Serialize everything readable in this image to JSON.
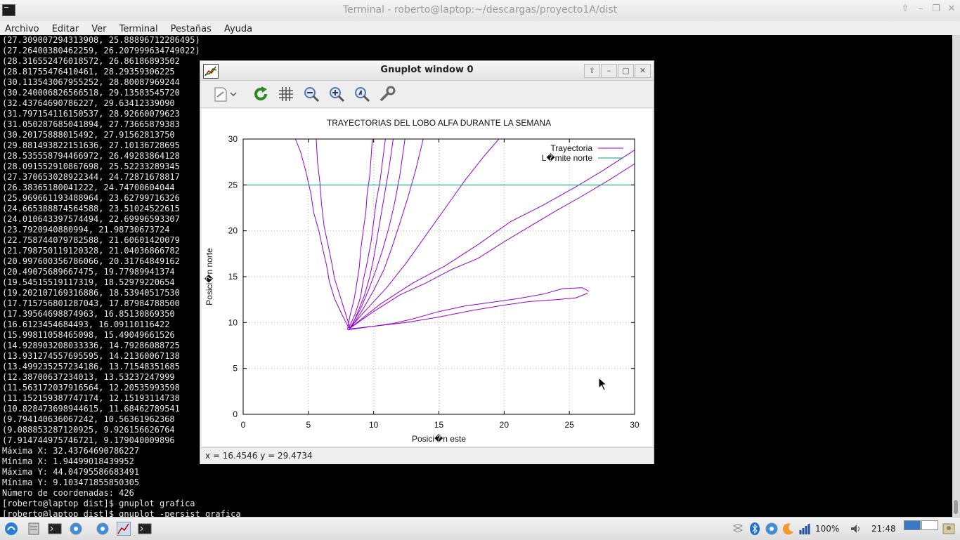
{
  "terminal": {
    "title": "Terminal - roberto@laptop:~/descargas/proyecto1A/dist",
    "menu": [
      "Archivo",
      "Editar",
      "Ver",
      "Terminal",
      "Pestañas",
      "Ayuda"
    ],
    "lines": [
      "(27.309007294313908, 25.88896712286495)",
      "(27.26400380462259, 26.207999634749022)",
      "(28.316552476018572, 26.86186893502",
      "(28.81755476410461, 28.29359306225",
      "(30.113543067955252, 28.80087969244",
      "(30.240006826566518, 29.13583545720",
      "(32.43764690786227, 29.63412339090",
      "(31.797154116150537, 28.92660079623",
      "(31.050287685041894, 27.73665879383",
      "(30.20175888015492, 27.91562813750",
      "(29.881493822151636, 27.10136728695",
      "(28.535558794466972, 26.49283864128",
      "(28.091552910867698, 25.52233289345",
      "(27.370653028922344, 24.72871678817",
      "(26.38365180041222, 24.74700604044",
      "(25.969661193488964, 23.62799716326",
      "(24.665388874564588, 23.51024522615",
      "(24.010643397574494, 22.69996593307",
      "(23.7920940880994, 21.98730673724",
      "(22.758744079782588, 21.60601420079",
      "(21.798750119120328, 21.04036866782",
      "(20.997600356786066, 20.31764849162",
      "(20.49075689667475, 19.77989941374",
      "(19.54515519117319, 18.52979220654",
      "(19.202107169316886, 18.53940517530",
      "(17.715756801287043, 17.87984788500",
      "(17.39564698874963, 16.85130869350",
      "(16.6123454684493, 16.09110116422",
      "(15.99811058465098, 15.49049661526",
      "(14.928903208033336, 14.79286088725",
      "(13.931274557695595, 14.21360067138",
      "(13.499235257234186, 13.71548351685",
      "(12.38700637234013, 13.53237247999",
      "(11.563172037916564, 12.20535993598",
      "(11.152159387747174, 12.15193114738",
      "(10.828473698944615, 11.68462789541",
      "(9.794140636067242, 10.56361962368",
      "(9.088853287120925, 9.926156626764",
      "(7.914744975746721, 9.179040009896",
      "Máxima X: 32.43764690786227",
      "Mínima X: 1.94499018439952",
      "Máxima Y: 44.04795586683491",
      "Mínima Y: 9.103471855850305",
      "Número de coordenadas: 426",
      "[roberto@laptop dist]$ gnuplot grafica",
      "[roberto@laptop dist]$ gnuplot -persist grafica"
    ]
  },
  "gnuplot": {
    "title": "Gnuplot window 0",
    "status": "x = 16.4546 y = 29.4734",
    "toolbar_icons": [
      "export-icon",
      "replot-icon",
      "grid-icon",
      "zoom-out-icon",
      "zoom-in-icon",
      "zoom-fit-icon",
      "settings-icon"
    ]
  },
  "chart_data": {
    "type": "line",
    "title": "TRAYECTORIAS DEL LOBO ALFA DURANTE LA SEMANA",
    "xlabel": "Posici�n este",
    "ylabel": "Posici�n norte",
    "xlim": [
      0,
      30
    ],
    "ylim": [
      0,
      30
    ],
    "xticks": [
      0,
      5,
      10,
      15,
      20,
      25,
      30
    ],
    "yticks": [
      0,
      5,
      10,
      15,
      20,
      25,
      30
    ],
    "grid": true,
    "legend_position": "top-right",
    "colors": {
      "trayectoria": "#9400d3",
      "limite": "#009e73"
    },
    "legend": [
      "Trayectoria",
      "L�mite norte"
    ],
    "hline": 25,
    "series": [
      {
        "name": "Trayectoria",
        "x": [
          8.1,
          7.6,
          7.0,
          6.6,
          6.4,
          6.1,
          5.8,
          5.4,
          5.2,
          4.8,
          4.4,
          4.0
        ],
        "y": [
          9.4,
          10.8,
          12.6,
          14.5,
          16.2,
          18.0,
          20.0,
          22.0,
          24.0,
          26.5,
          28.6,
          30.0
        ]
      },
      {
        "name": "Trayectoria",
        "x": [
          8.2,
          7.8,
          7.4,
          7.0,
          6.8,
          6.5,
          6.2,
          6.0,
          5.9,
          5.7,
          5.6
        ],
        "y": [
          9.4,
          11.2,
          13.0,
          14.8,
          16.4,
          18.5,
          20.5,
          23.0,
          25.0,
          27.5,
          30.0
        ]
      },
      {
        "name": "Trayectoria",
        "x": [
          8.0,
          8.2,
          8.5,
          8.7,
          8.9,
          9.0,
          9.2,
          9.4,
          9.5,
          9.7,
          9.8,
          9.9
        ],
        "y": [
          9.3,
          10.8,
          12.5,
          14.2,
          16.0,
          17.8,
          20.0,
          22.0,
          24.0,
          26.0,
          28.0,
          30.0
        ]
      },
      {
        "name": "Trayectoria",
        "x": [
          8.1,
          8.6,
          9.0,
          9.2,
          9.5,
          9.8,
          10.0,
          10.2,
          10.5,
          10.7,
          10.9
        ],
        "y": [
          9.4,
          11.0,
          12.8,
          14.6,
          16.5,
          18.8,
          21.0,
          23.2,
          25.5,
          27.8,
          30.0
        ]
      },
      {
        "name": "Trayectoria",
        "x": [
          8.3,
          8.8,
          9.3,
          9.7,
          10.0,
          10.3,
          10.6,
          10.9,
          11.2,
          11.5
        ],
        "y": [
          9.5,
          11.2,
          13.0,
          15.0,
          17.0,
          19.5,
          22.0,
          24.5,
          27.0,
          30.0
        ]
      },
      {
        "name": "Trayectoria",
        "x": [
          8.2,
          9.0,
          9.6,
          10.2,
          10.7,
          11.2,
          11.6,
          12.0,
          12.4
        ],
        "y": [
          9.4,
          11.5,
          13.5,
          15.8,
          18.0,
          20.5,
          23.0,
          26.0,
          30.0
        ]
      },
      {
        "name": "Trayectoria",
        "x": [
          8.3,
          9.2,
          10.0,
          10.8,
          11.4,
          12.0,
          12.6,
          13.2,
          13.8
        ],
        "y": [
          9.5,
          11.5,
          13.5,
          15.8,
          18.2,
          20.8,
          23.5,
          26.5,
          30.0
        ]
      },
      {
        "name": "Trayectoria",
        "x": [
          8.1,
          9.5,
          11.0,
          12.5,
          14.0,
          15.5,
          17.0,
          18.5,
          19.6
        ],
        "y": [
          9.3,
          11.5,
          13.8,
          16.5,
          19.5,
          22.5,
          25.5,
          28.2,
          30.0
        ]
      },
      {
        "name": "Trayectoria",
        "x": [
          8.2,
          10.0,
          12.0,
          14.0,
          16.0,
          18.0,
          20.0,
          22.0,
          24.0,
          26.0,
          28.0,
          30.0
        ],
        "y": [
          9.4,
          11.2,
          13.0,
          14.3,
          15.8,
          17.0,
          18.8,
          20.5,
          22.2,
          23.8,
          25.5,
          27.3
        ]
      },
      {
        "name": "Trayectoria",
        "x": [
          8.2,
          10.5,
          13.0,
          15.5,
          18.0,
          20.5,
          23.0,
          25.5,
          27.5,
          30.0
        ],
        "y": [
          9.4,
          12.0,
          14.3,
          16.2,
          18.5,
          21.0,
          22.8,
          24.8,
          26.5,
          28.8
        ]
      },
      {
        "name": "Trayectoria",
        "x": [
          8.0,
          9.5,
          11.5,
          13.0,
          15.0,
          17.0,
          19.0,
          21.0,
          23.0,
          24.5,
          26.0,
          26.5
        ],
        "y": [
          9.2,
          9.5,
          9.9,
          10.4,
          11.2,
          11.8,
          12.2,
          12.6,
          13.1,
          13.7,
          13.8,
          13.4
        ]
      },
      {
        "name": "Trayectoria",
        "x": [
          8.1,
          10.0,
          12.5,
          15.0,
          17.5,
          20.0,
          22.0,
          24.0,
          25.5,
          26.4
        ],
        "y": [
          9.3,
          9.6,
          10.0,
          10.6,
          11.3,
          11.9,
          12.3,
          12.5,
          12.7,
          13.2
        ]
      }
    ]
  }
}
